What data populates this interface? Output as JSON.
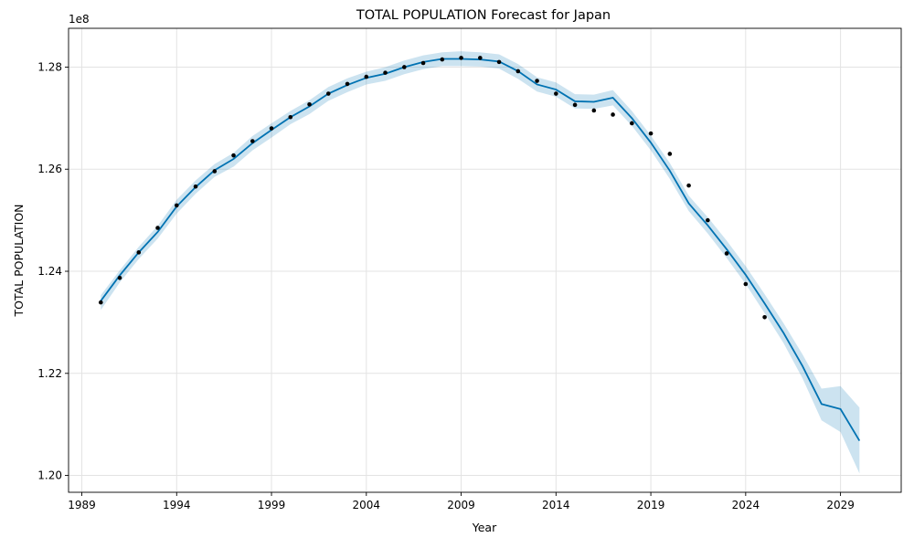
{
  "chart_data": {
    "type": "line",
    "title": "TOTAL POPULATION Forecast for Japan",
    "xlabel": "Year",
    "ylabel": "TOTAL POPULATION",
    "y_offset_label": "1e8",
    "xlim": [
      1988.3,
      2032.2
    ],
    "ylim": [
      1.1967,
      1.2876
    ],
    "x_ticks": [
      1989,
      1994,
      1999,
      2004,
      2009,
      2014,
      2019,
      2024,
      2029
    ],
    "x_tick_labels": [
      "1989",
      "1994",
      "1999",
      "2004",
      "2009",
      "2014",
      "2019",
      "2024",
      "2029"
    ],
    "y_ticks": [
      1.2,
      1.22,
      1.24,
      1.26,
      1.28
    ],
    "y_tick_labels": [
      "1.20",
      "1.22",
      "1.24",
      "1.26",
      "1.28"
    ],
    "grid": true,
    "colors": {
      "forecast": "#0072b2",
      "interval": "#0072b2",
      "actual": "#000000"
    },
    "series": [
      {
        "kind": "actual",
        "style": "points",
        "points": [
          [
            1990.0,
            1.2339
          ],
          [
            1991.0,
            1.2387
          ],
          [
            1992.0,
            1.2437
          ],
          [
            1993.0,
            1.2485
          ],
          [
            1994.0,
            1.2529
          ],
          [
            1995.0,
            1.2566
          ],
          [
            1996.0,
            1.2596
          ],
          [
            1997.0,
            1.2627
          ],
          [
            1998.0,
            1.2655
          ],
          [
            1999.0,
            1.268
          ],
          [
            2000.0,
            1.2702
          ],
          [
            2001.0,
            1.2727
          ],
          [
            2002.0,
            1.2748
          ],
          [
            2003.0,
            1.2767
          ],
          [
            2004.0,
            1.2781
          ],
          [
            2005.0,
            1.2789
          ],
          [
            2006.0,
            1.28
          ],
          [
            2007.0,
            1.2808
          ],
          [
            2008.0,
            1.2815
          ],
          [
            2009.0,
            1.2818
          ],
          [
            2010.0,
            1.2818
          ],
          [
            2011.0,
            1.281
          ],
          [
            2012.0,
            1.2792
          ],
          [
            2013.0,
            1.2773
          ],
          [
            2014.0,
            1.2748
          ],
          [
            2015.0,
            1.2726
          ],
          [
            2016.0,
            1.2715
          ],
          [
            2017.0,
            1.2707
          ],
          [
            2018.0,
            1.269
          ],
          [
            2019.0,
            1.267
          ],
          [
            2020.0,
            1.263
          ],
          [
            2021.0,
            1.2568
          ],
          [
            2022.0,
            1.25
          ],
          [
            2023.0,
            1.2435
          ],
          [
            2024.0,
            1.2375
          ],
          [
            2025.0,
            1.231
          ]
        ]
      },
      {
        "kind": "forecast",
        "style": "line",
        "points": [
          [
            1990.0,
            1.2342
          ],
          [
            1991.0,
            1.2392
          ],
          [
            1992.0,
            1.2437
          ],
          [
            1993.0,
            1.2477
          ],
          [
            1994.0,
            1.2527
          ],
          [
            1995.0,
            1.2565
          ],
          [
            1996.0,
            1.2598
          ],
          [
            1997.0,
            1.262
          ],
          [
            1998.0,
            1.2651
          ],
          [
            1999.0,
            1.2677
          ],
          [
            2000.0,
            1.2702
          ],
          [
            2001.0,
            1.2723
          ],
          [
            2002.0,
            1.2748
          ],
          [
            2003.0,
            1.2765
          ],
          [
            2004.0,
            1.2779
          ],
          [
            2005.0,
            1.2787
          ],
          [
            2006.0,
            1.28
          ],
          [
            2007.0,
            1.281
          ],
          [
            2008.0,
            1.2816
          ],
          [
            2009.0,
            1.2816
          ],
          [
            2010.0,
            1.2815
          ],
          [
            2011.0,
            1.2811
          ],
          [
            2012.0,
            1.2792
          ],
          [
            2013.0,
            1.2766
          ],
          [
            2014.0,
            1.2756
          ],
          [
            2015.0,
            1.2733
          ],
          [
            2016.0,
            1.2732
          ],
          [
            2017.0,
            1.274
          ],
          [
            2018.0,
            1.27
          ],
          [
            2019.0,
            1.2652
          ],
          [
            2020.0,
            1.2597
          ],
          [
            2021.0,
            1.2533
          ],
          [
            2022.0,
            1.249
          ],
          [
            2023.0,
            1.2443
          ],
          [
            2024.0,
            1.2393
          ],
          [
            2025.0,
            1.2337
          ],
          [
            2026.0,
            1.2279
          ],
          [
            2027.0,
            1.2214
          ],
          [
            2028.0,
            1.214
          ],
          [
            2029.0,
            1.213
          ],
          [
            2030.0,
            1.2068
          ]
        ]
      },
      {
        "kind": "interval",
        "style": "band",
        "upper": [
          [
            1990.0,
            1.2353
          ],
          [
            1991.0,
            1.2402
          ],
          [
            1992.0,
            1.2448
          ],
          [
            1993.0,
            1.2489
          ],
          [
            1994.0,
            1.254
          ],
          [
            1995.0,
            1.2578
          ],
          [
            1996.0,
            1.261
          ],
          [
            1997.0,
            1.2632
          ],
          [
            1998.0,
            1.2665
          ],
          [
            1999.0,
            1.269
          ],
          [
            2000.0,
            1.2714
          ],
          [
            2001.0,
            1.2735
          ],
          [
            2002.0,
            1.2761
          ],
          [
            2003.0,
            1.2778
          ],
          [
            2004.0,
            1.2791
          ],
          [
            2005.0,
            1.28
          ],
          [
            2006.0,
            1.2813
          ],
          [
            2007.0,
            1.2823
          ],
          [
            2008.0,
            1.2829
          ],
          [
            2009.0,
            1.2831
          ],
          [
            2010.0,
            1.2829
          ],
          [
            2011.0,
            1.2825
          ],
          [
            2012.0,
            1.2806
          ],
          [
            2013.0,
            1.278
          ],
          [
            2014.0,
            1.277
          ],
          [
            2015.0,
            1.2747
          ],
          [
            2016.0,
            1.2746
          ],
          [
            2017.0,
            1.2755
          ],
          [
            2018.0,
            1.2714
          ],
          [
            2019.0,
            1.2666
          ],
          [
            2020.0,
            1.2612
          ],
          [
            2021.0,
            1.2548
          ],
          [
            2022.0,
            1.2506
          ],
          [
            2023.0,
            1.246
          ],
          [
            2024.0,
            1.241
          ],
          [
            2025.0,
            1.2355
          ],
          [
            2026.0,
            1.2298
          ],
          [
            2027.0,
            1.2237
          ],
          [
            2028.0,
            1.217
          ],
          [
            2029.0,
            1.2175
          ],
          [
            2030.0,
            1.2133
          ]
        ],
        "lower": [
          [
            1990.0,
            1.2324
          ],
          [
            1991.0,
            1.2378
          ],
          [
            1992.0,
            1.2424
          ],
          [
            1993.0,
            1.2464
          ],
          [
            1994.0,
            1.2513
          ],
          [
            1995.0,
            1.2552
          ],
          [
            1996.0,
            1.2585
          ],
          [
            1997.0,
            1.2605
          ],
          [
            1998.0,
            1.2637
          ],
          [
            1999.0,
            1.2662
          ],
          [
            2000.0,
            1.2688
          ],
          [
            2001.0,
            1.2708
          ],
          [
            2002.0,
            1.2734
          ],
          [
            2003.0,
            1.2751
          ],
          [
            2004.0,
            1.2766
          ],
          [
            2005.0,
            1.2773
          ],
          [
            2006.0,
            1.2786
          ],
          [
            2007.0,
            1.2796
          ],
          [
            2008.0,
            1.2802
          ],
          [
            2009.0,
            1.2802
          ],
          [
            2010.0,
            1.2801
          ],
          [
            2011.0,
            1.2797
          ],
          [
            2012.0,
            1.2777
          ],
          [
            2013.0,
            1.2752
          ],
          [
            2014.0,
            1.2742
          ],
          [
            2015.0,
            1.2719
          ],
          [
            2016.0,
            1.2718
          ],
          [
            2017.0,
            1.2725
          ],
          [
            2018.0,
            1.2685
          ],
          [
            2019.0,
            1.2637
          ],
          [
            2020.0,
            1.2581
          ],
          [
            2021.0,
            1.2518
          ],
          [
            2022.0,
            1.2474
          ],
          [
            2023.0,
            1.2426
          ],
          [
            2024.0,
            1.2375
          ],
          [
            2025.0,
            1.2318
          ],
          [
            2026.0,
            1.2259
          ],
          [
            2027.0,
            1.219
          ],
          [
            2028.0,
            1.2108
          ],
          [
            2029.0,
            1.2085
          ],
          [
            2030.0,
            1.2004
          ]
        ]
      }
    ]
  }
}
